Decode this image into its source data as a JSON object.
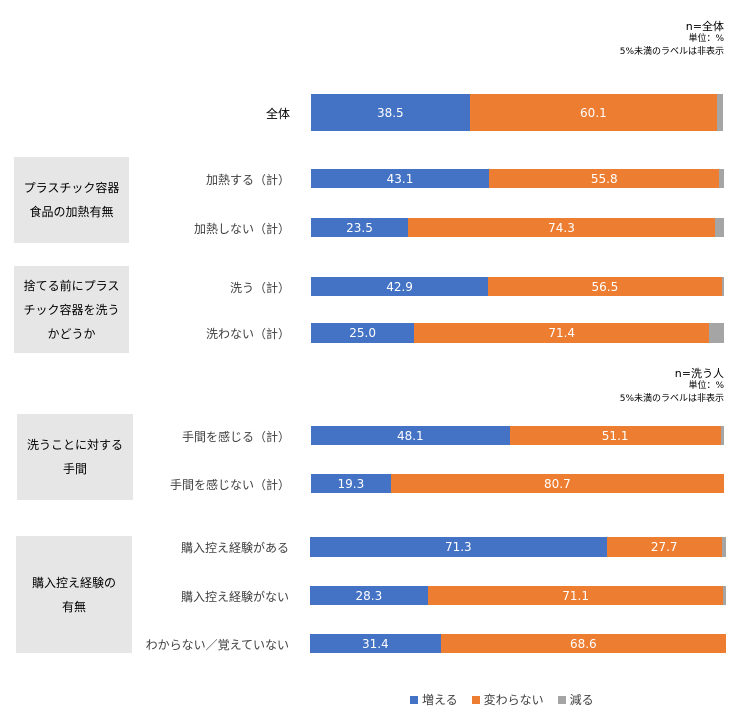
{
  "chart_data": {
    "type": "bar",
    "orientation": "horizontal",
    "stacked": "100%",
    "unit": "%",
    "notes": [
      {
        "n_label": "n=全体",
        "unit_label": "単位：%",
        "hide_rule": "5%未満のラベルは非表示"
      },
      {
        "n_label": "n=洗う人",
        "unit_label": "単位：%",
        "hide_rule": "5%未満のラベルは非表示"
      }
    ],
    "series": [
      {
        "name": "増える",
        "color": "#4472C4"
      },
      {
        "name": "変わらない",
        "color": "#ED7D31"
      },
      {
        "name": "減る",
        "color": "#A5A5A5"
      }
    ],
    "groups": [
      {
        "title_lines": [],
        "rows": [
          {
            "label": "全体",
            "values": [
              38.5,
              60.1,
              1.4
            ]
          }
        ]
      },
      {
        "title_lines": [
          "プラスチック容器",
          "食品の加熱有無"
        ],
        "rows": [
          {
            "label": "加熱する（計）",
            "values": [
              43.1,
              55.8,
              1.1
            ]
          },
          {
            "label": "加熱しない（計）",
            "values": [
              23.5,
              74.3,
              2.2
            ]
          }
        ]
      },
      {
        "title_lines": [
          "捨てる前にプラス",
          "チック容器を洗う",
          "かどうか"
        ],
        "rows": [
          {
            "label": "洗う（計）",
            "values": [
              42.9,
              56.5,
              0.6
            ]
          },
          {
            "label": "洗わない（計）",
            "values": [
              25.0,
              71.4,
              3.6
            ]
          }
        ]
      },
      {
        "title_lines": [
          "洗うことに対する",
          "手間"
        ],
        "rows": [
          {
            "label": "手間を感じる（計）",
            "values": [
              48.1,
              51.1,
              0.8
            ]
          },
          {
            "label": "手間を感じない（計）",
            "values": [
              19.3,
              80.7,
              0.0
            ]
          }
        ]
      },
      {
        "title_lines": [
          "購入控え経験の",
          "有無"
        ],
        "rows": [
          {
            "label": "購入控え経験がある",
            "values": [
              71.3,
              27.7,
              1.0
            ]
          },
          {
            "label": "購入控え経験がない",
            "values": [
              28.3,
              71.1,
              0.6
            ]
          },
          {
            "label": "わからない／覚えていない",
            "values": [
              31.4,
              68.6,
              0.0
            ]
          }
        ]
      }
    ],
    "label_threshold": 5,
    "xlim": [
      0,
      100
    ],
    "legend_position": "bottom"
  }
}
